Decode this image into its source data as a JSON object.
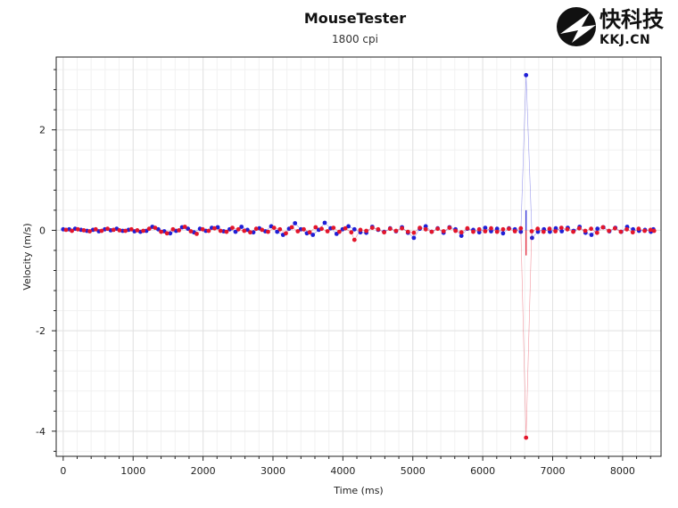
{
  "chart_data": {
    "type": "scatter",
    "title": "MouseTester",
    "subtitle": "1800 cpi",
    "xlabel": "Time (ms)",
    "ylabel": "Velocity (m/s)",
    "xlim": [
      -100,
      8550
    ],
    "ylim": [
      -4.5,
      3.45
    ],
    "x_ticks": [
      0,
      1000,
      2000,
      3000,
      4000,
      5000,
      6000,
      7000,
      8000
    ],
    "y_ticks": [
      -4,
      -2,
      0,
      2
    ],
    "grid": true,
    "series": [
      {
        "color": "#1f1fd6",
        "points": [
          [
            0,
            0.02
          ],
          [
            85,
            0.02
          ],
          [
            170,
            0.03
          ],
          [
            255,
            0.01
          ],
          [
            340,
            -0.01
          ],
          [
            425,
            0.01
          ],
          [
            510,
            -0.02
          ],
          [
            595,
            0.02
          ],
          [
            680,
            0.0
          ],
          [
            765,
            0.03
          ],
          [
            850,
            -0.01
          ],
          [
            935,
            0.01
          ],
          [
            1020,
            -0.02
          ],
          [
            1105,
            -0.03
          ],
          [
            1190,
            -0.01
          ],
          [
            1275,
            0.07
          ],
          [
            1360,
            0.02
          ],
          [
            1445,
            -0.02
          ],
          [
            1530,
            -0.06
          ],
          [
            1615,
            -0.01
          ],
          [
            1700,
            0.06
          ],
          [
            1785,
            0.03
          ],
          [
            1870,
            -0.04
          ],
          [
            1955,
            0.03
          ],
          [
            2040,
            -0.01
          ],
          [
            2125,
            0.05
          ],
          [
            2210,
            0.06
          ],
          [
            2295,
            -0.02
          ],
          [
            2380,
            0.02
          ],
          [
            2465,
            -0.03
          ],
          [
            2550,
            0.07
          ],
          [
            2635,
            0.01
          ],
          [
            2720,
            -0.04
          ],
          [
            2805,
            0.04
          ],
          [
            2890,
            -0.02
          ],
          [
            2975,
            0.08
          ],
          [
            3060,
            -0.03
          ],
          [
            3145,
            -0.09
          ],
          [
            3230,
            0.03
          ],
          [
            3315,
            0.14
          ],
          [
            3400,
            0.02
          ],
          [
            3485,
            -0.06
          ],
          [
            3570,
            -0.09
          ],
          [
            3655,
            0.01
          ],
          [
            3740,
            0.15
          ],
          [
            3825,
            0.04
          ],
          [
            3910,
            -0.07
          ],
          [
            3995,
            0.02
          ],
          [
            4080,
            0.08
          ],
          [
            4165,
            0.02
          ],
          [
            4250,
            -0.04
          ],
          [
            4335,
            -0.05
          ],
          [
            4420,
            0.07
          ],
          [
            4505,
            0.01
          ],
          [
            4590,
            -0.03
          ],
          [
            4675,
            0.04
          ],
          [
            4760,
            -0.02
          ],
          [
            4845,
            0.06
          ],
          [
            4930,
            -0.05
          ],
          [
            5015,
            -0.15
          ],
          [
            5100,
            0.03
          ],
          [
            5185,
            0.08
          ],
          [
            5270,
            -0.03
          ],
          [
            5355,
            0.04
          ],
          [
            5440,
            -0.05
          ],
          [
            5525,
            0.06
          ],
          [
            5610,
            0.02
          ],
          [
            5695,
            -0.11
          ],
          [
            5780,
            0.03
          ],
          [
            5865,
            0.01
          ],
          [
            5950,
            -0.04
          ],
          [
            6035,
            0.05
          ],
          [
            6120,
            -0.02
          ],
          [
            6205,
            0.03
          ],
          [
            6290,
            -0.06
          ],
          [
            6375,
            0.04
          ],
          [
            6460,
            0.02
          ],
          [
            6545,
            -0.03
          ],
          [
            6620,
            3.09
          ],
          [
            6705,
            -0.15
          ],
          [
            6790,
            -0.03
          ],
          [
            6875,
            0.02
          ],
          [
            6960,
            -0.03
          ],
          [
            7045,
            0.04
          ],
          [
            7130,
            -0.02
          ],
          [
            7215,
            0.05
          ],
          [
            7300,
            -0.01
          ],
          [
            7385,
            0.07
          ],
          [
            7470,
            -0.05
          ],
          [
            7555,
            -0.09
          ],
          [
            7640,
            0.03
          ],
          [
            7725,
            0.06
          ],
          [
            7810,
            -0.02
          ],
          [
            7895,
            0.05
          ],
          [
            7980,
            -0.03
          ],
          [
            8065,
            0.07
          ],
          [
            8150,
            0.02
          ],
          [
            8235,
            -0.01
          ],
          [
            8320,
            0.01
          ],
          [
            8405,
            -0.03
          ],
          [
            8440,
            0.02
          ]
        ]
      },
      {
        "color": "#e3162b",
        "points": [
          [
            40,
            0.01
          ],
          [
            125,
            -0.01
          ],
          [
            210,
            0.02
          ],
          [
            295,
            0.0
          ],
          [
            380,
            -0.02
          ],
          [
            465,
            0.02
          ],
          [
            550,
            -0.01
          ],
          [
            635,
            0.03
          ],
          [
            720,
            0.01
          ],
          [
            805,
            0.0
          ],
          [
            890,
            -0.01
          ],
          [
            975,
            0.02
          ],
          [
            1060,
            0.0
          ],
          [
            1145,
            -0.01
          ],
          [
            1230,
            0.03
          ],
          [
            1315,
            0.05
          ],
          [
            1400,
            -0.03
          ],
          [
            1485,
            -0.06
          ],
          [
            1570,
            0.02
          ],
          [
            1655,
            0.0
          ],
          [
            1740,
            0.07
          ],
          [
            1825,
            -0.02
          ],
          [
            1910,
            -0.07
          ],
          [
            1995,
            0.02
          ],
          [
            2080,
            -0.01
          ],
          [
            2165,
            0.04
          ],
          [
            2250,
            -0.01
          ],
          [
            2335,
            -0.03
          ],
          [
            2420,
            0.05
          ],
          [
            2505,
            0.02
          ],
          [
            2590,
            -0.01
          ],
          [
            2675,
            -0.04
          ],
          [
            2760,
            0.03
          ],
          [
            2845,
            0.01
          ],
          [
            2930,
            -0.03
          ],
          [
            3015,
            0.05
          ],
          [
            3100,
            0.02
          ],
          [
            3185,
            -0.06
          ],
          [
            3270,
            0.06
          ],
          [
            3355,
            -0.02
          ],
          [
            3440,
            0.02
          ],
          [
            3525,
            -0.04
          ],
          [
            3610,
            0.06
          ],
          [
            3695,
            0.03
          ],
          [
            3780,
            -0.02
          ],
          [
            3865,
            0.05
          ],
          [
            3950,
            -0.03
          ],
          [
            4035,
            0.04
          ],
          [
            4120,
            -0.04
          ],
          [
            4165,
            -0.19
          ],
          [
            4250,
            0.01
          ],
          [
            4335,
            -0.01
          ],
          [
            4420,
            0.05
          ],
          [
            4505,
            0.02
          ],
          [
            4590,
            -0.04
          ],
          [
            4675,
            0.03
          ],
          [
            4760,
            -0.01
          ],
          [
            4845,
            0.04
          ],
          [
            4930,
            -0.03
          ],
          [
            5015,
            -0.05
          ],
          [
            5100,
            0.05
          ],
          [
            5185,
            0.02
          ],
          [
            5270,
            -0.03
          ],
          [
            5355,
            0.03
          ],
          [
            5440,
            -0.02
          ],
          [
            5525,
            0.05
          ],
          [
            5610,
            -0.01
          ],
          [
            5695,
            -0.04
          ],
          [
            5780,
            0.04
          ],
          [
            5865,
            -0.03
          ],
          [
            5950,
            0.02
          ],
          [
            6035,
            -0.02
          ],
          [
            6120,
            0.04
          ],
          [
            6205,
            -0.03
          ],
          [
            6290,
            0.02
          ],
          [
            6375,
            0.03
          ],
          [
            6460,
            -0.02
          ],
          [
            6545,
            0.04
          ],
          [
            6620,
            -4.13
          ],
          [
            6700,
            -0.02
          ],
          [
            6785,
            0.03
          ],
          [
            6870,
            -0.03
          ],
          [
            6955,
            0.03
          ],
          [
            7040,
            -0.02
          ],
          [
            7125,
            0.05
          ],
          [
            7210,
            0.02
          ],
          [
            7295,
            -0.03
          ],
          [
            7380,
            0.04
          ],
          [
            7465,
            -0.01
          ],
          [
            7550,
            0.03
          ],
          [
            7635,
            -0.05
          ],
          [
            7720,
            0.06
          ],
          [
            7805,
            -0.01
          ],
          [
            7890,
            0.04
          ],
          [
            7975,
            -0.03
          ],
          [
            8060,
            0.02
          ],
          [
            8145,
            -0.04
          ],
          [
            8230,
            0.03
          ],
          [
            8315,
            -0.01
          ],
          [
            8400,
            0.01
          ],
          [
            8450,
            -0.01
          ]
        ]
      }
    ]
  },
  "watermark": {
    "text_cn": "快科技",
    "text_en": "KKJ.CN"
  }
}
